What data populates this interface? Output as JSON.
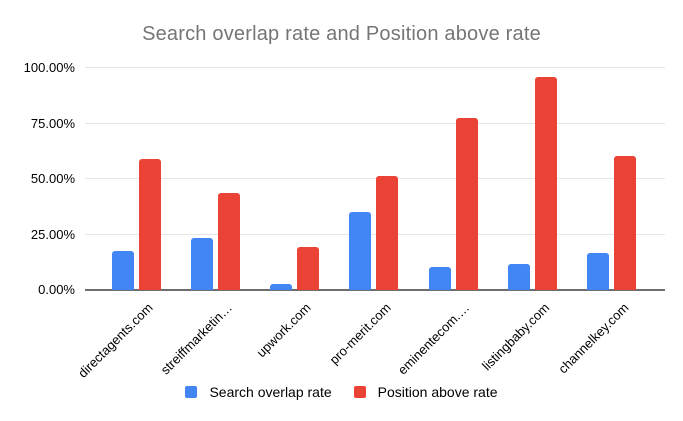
{
  "title": "Search overlap rate and Position above rate",
  "chart_data": {
    "type": "bar",
    "title": "Search overlap rate and Position above rate",
    "categories": [
      "directagents.com",
      "streiffmarketin…",
      "upwork.com",
      "pro-merit.com",
      "eminentecom.…",
      "listingbaby.com",
      "channelkey.com"
    ],
    "series": [
      {
        "name": "Search overlap rate",
        "color": "#4285F4",
        "values": [
          17.5,
          23.5,
          2.5,
          35,
          10.5,
          11.5,
          16.5
        ]
      },
      {
        "name": "Position above rate",
        "color": "#EA4335",
        "values": [
          59,
          43.5,
          19.5,
          51.5,
          77.5,
          96,
          60.5
        ]
      }
    ],
    "xlabel": "",
    "ylabel": "",
    "ylim": [
      0,
      100
    ],
    "y_tick_labels": [
      "0.00%",
      "25.00%",
      "50.00%",
      "75.00%",
      "100.00%"
    ],
    "y_tick_values": [
      0,
      25,
      50,
      75,
      100
    ],
    "grid": true,
    "legend_position": "bottom",
    "colors": {
      "title_text": "#757575",
      "axis_text": "#000000",
      "gridline": "#e6e6e6",
      "axis_baseline": "#6e6e6e",
      "background": "#ffffff"
    }
  }
}
